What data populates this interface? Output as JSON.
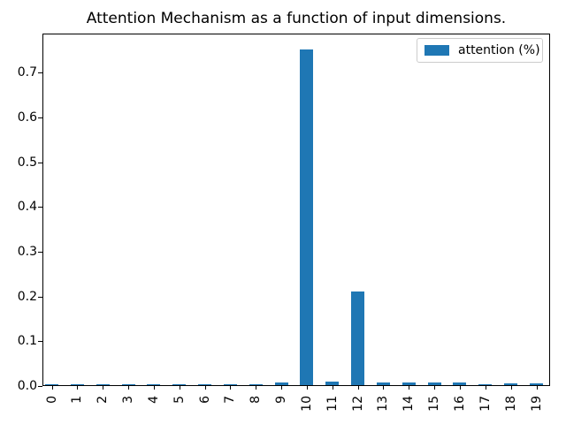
{
  "chart_data": {
    "type": "bar",
    "title": "Attention Mechanism as a function of input dimensions.",
    "categories": [
      "0",
      "1",
      "2",
      "3",
      "4",
      "5",
      "6",
      "7",
      "8",
      "9",
      "10",
      "11",
      "12",
      "13",
      "14",
      "15",
      "16",
      "17",
      "18",
      "19"
    ],
    "values": [
      0.002,
      0.002,
      0.002,
      0.002,
      0.002,
      0.002,
      0.002,
      0.002,
      0.002,
      0.006,
      0.75,
      0.008,
      0.21,
      0.006,
      0.006,
      0.005,
      0.006,
      0.002,
      0.003,
      0.003
    ],
    "series": [
      {
        "name": "attention (%)",
        "values": [
          0.002,
          0.002,
          0.002,
          0.002,
          0.002,
          0.002,
          0.002,
          0.002,
          0.002,
          0.006,
          0.75,
          0.008,
          0.21,
          0.006,
          0.006,
          0.005,
          0.006,
          0.002,
          0.003,
          0.003
        ]
      }
    ],
    "xlabel": "",
    "ylabel": "",
    "ylim": [
      0,
      0.7875
    ],
    "yticks": [
      0.0,
      0.1,
      0.2,
      0.3,
      0.4,
      0.5,
      0.6,
      0.7
    ],
    "ytick_labels": [
      "0.0",
      "0.1",
      "0.2",
      "0.3",
      "0.4",
      "0.5",
      "0.6",
      "0.7"
    ],
    "xtick_rotation": 90,
    "bar_color": "#1f77b4",
    "axis_color": "#000000",
    "legend_border_color": "#cccccc",
    "grid": false,
    "legend_position": "upper right",
    "legend": [
      "attention (%)"
    ]
  }
}
